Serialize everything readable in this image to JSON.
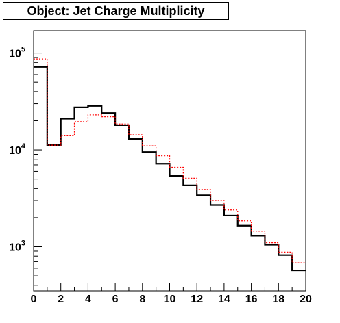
{
  "title": "Object: Jet Charge Multiplicity",
  "chart_data": {
    "type": "line",
    "style": "step-histogram",
    "title": "Object: Jet Charge Multiplicity",
    "xlabel": "",
    "ylabel": "",
    "xlim": [
      0,
      20
    ],
    "ylim": [
      350,
      170000
    ],
    "yscale": "log",
    "grid": false,
    "bin_edges": [
      0,
      1,
      2,
      3,
      4,
      5,
      6,
      7,
      8,
      9,
      10,
      11,
      12,
      13,
      14,
      15,
      16,
      17,
      18,
      19,
      20
    ],
    "x_ticks": [
      "0",
      "2",
      "4",
      "6",
      "8",
      "10",
      "12",
      "14",
      "16",
      "18",
      "20"
    ],
    "y_ticks": [
      {
        "value": 1000,
        "base": "10",
        "exp": "3"
      },
      {
        "value": 10000,
        "base": "10",
        "exp": "4"
      },
      {
        "value": 100000,
        "base": "10",
        "exp": "5"
      }
    ],
    "series": [
      {
        "color": "#000000",
        "line": "solid",
        "values": [
          72000,
          11200,
          21000,
          27500,
          28500,
          24000,
          18000,
          13000,
          9500,
          7200,
          5400,
          4300,
          3400,
          2700,
          2100,
          1650,
          1300,
          1050,
          820,
          570
        ]
      },
      {
        "color": "#ff0000",
        "line": "dashed",
        "values": [
          87000,
          11200,
          14000,
          19500,
          23000,
          22000,
          18500,
          14300,
          11000,
          8700,
          6600,
          5100,
          3900,
          3000,
          2400,
          1850,
          1450,
          1100,
          880,
          680
        ]
      }
    ]
  }
}
